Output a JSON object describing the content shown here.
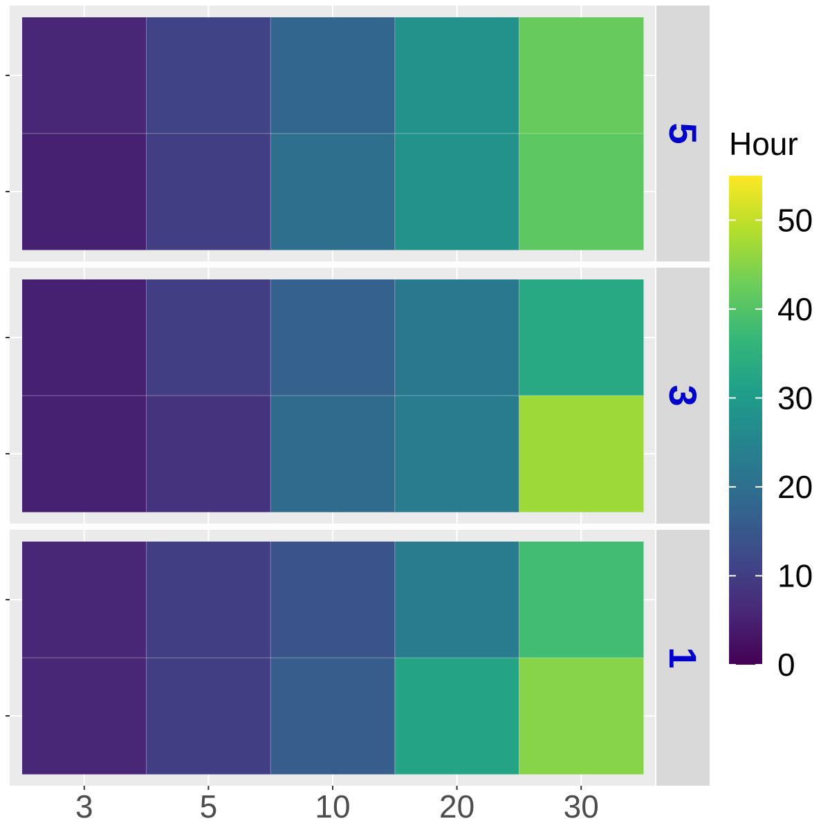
{
  "chart_data": {
    "type": "heatmap",
    "x_categories": [
      "3",
      "5",
      "10",
      "20",
      "30"
    ],
    "facets": [
      {
        "label": "5",
        "rows": [
          [
            6,
            11,
            18,
            28,
            42
          ],
          [
            5,
            10,
            20,
            28,
            41
          ]
        ]
      },
      {
        "label": "3",
        "rows": [
          [
            5,
            10,
            17,
            22,
            33
          ],
          [
            5,
            8,
            19,
            23,
            47
          ]
        ]
      },
      {
        "label": "1",
        "rows": [
          [
            6,
            10,
            14,
            23,
            38
          ],
          [
            6,
            10,
            16,
            32,
            45
          ]
        ]
      }
    ],
    "row_order_note": "rows listed top-to-bottom within each facet",
    "colorbar": {
      "title": "Hour",
      "min": 0,
      "max": 55,
      "ticks": [
        0,
        10,
        20,
        30,
        40,
        50
      ],
      "palette": "viridis"
    },
    "colors": {
      "panel_background": "#ebebeb",
      "strip_background": "#d9d9d9",
      "grid": "#ffffff",
      "strip_text": "#0000cc",
      "axis_text": "#4d4d4d"
    }
  }
}
